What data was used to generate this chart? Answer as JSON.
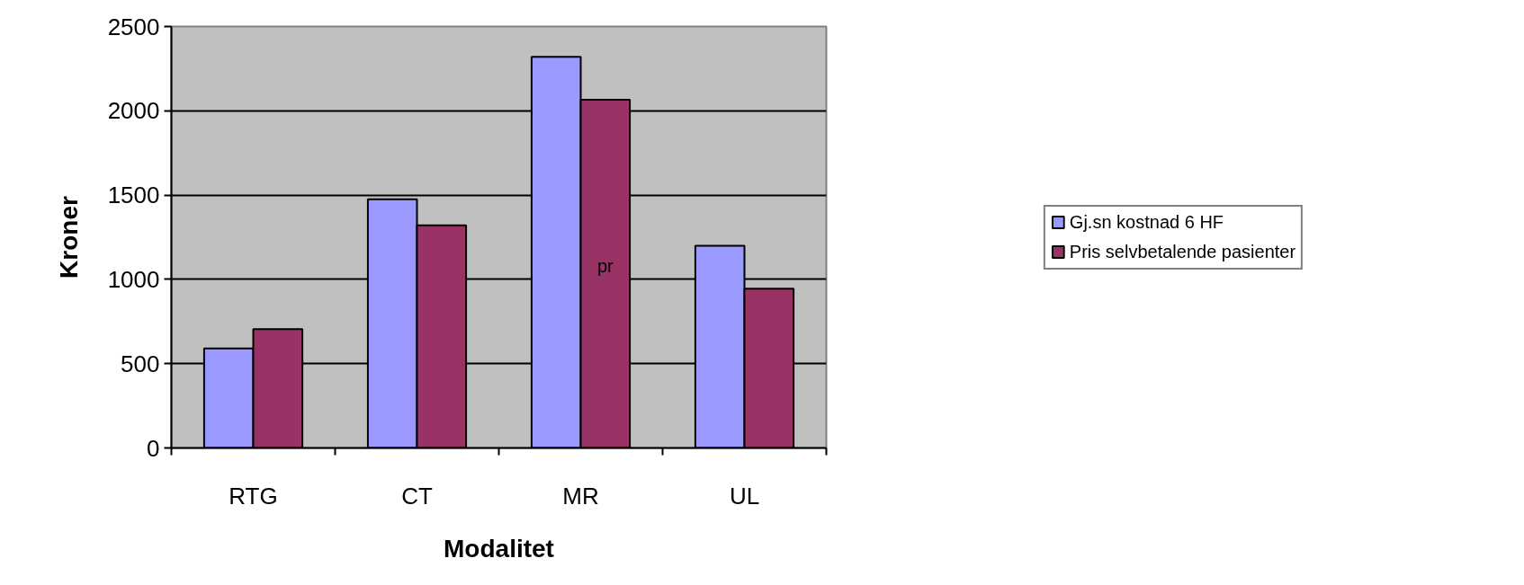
{
  "chart_data": {
    "type": "bar",
    "xlabel": "Modalitet",
    "ylabel": "Kroner",
    "categories": [
      "RTG",
      "CT",
      "MR",
      "UL"
    ],
    "series": [
      {
        "name": "Gj.sn kostnad 6 HF",
        "color": "#9999ff",
        "values": [
          590,
          1475,
          2320,
          1200
        ]
      },
      {
        "name": "Pris selvbetalende pasienter",
        "color": "#993366",
        "values": [
          705,
          1320,
          2065,
          945
        ]
      }
    ],
    "ylim": [
      0,
      2500
    ],
    "yticks": [
      0,
      500,
      1000,
      1500,
      2000,
      2500
    ],
    "grid": "y",
    "legend": "right",
    "annotations": [
      {
        "text": "pr",
        "x": "MR",
        "y": 1080
      }
    ]
  }
}
